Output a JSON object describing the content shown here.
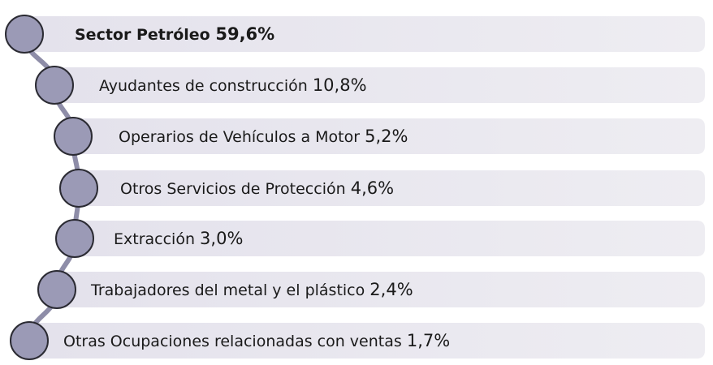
{
  "items": [
    {
      "label": "Sector Petróleo",
      "value": "59,6%"
    },
    {
      "label": "Ayudantes de construcción",
      "value": "10,8%"
    },
    {
      "label": "Operarios de Vehículos a Motor",
      "value": "5,2%"
    },
    {
      "label": "Otros Servicios de Protección",
      "value": "4,6%"
    },
    {
      "label": "Extracción",
      "value": "3,0%"
    },
    {
      "label": "Trabajadores del metal y el plástico",
      "value": "2,4%"
    },
    {
      "label": "Otras Ocupaciones relacionadas con ventas",
      "value": "1,7%"
    }
  ]
}
